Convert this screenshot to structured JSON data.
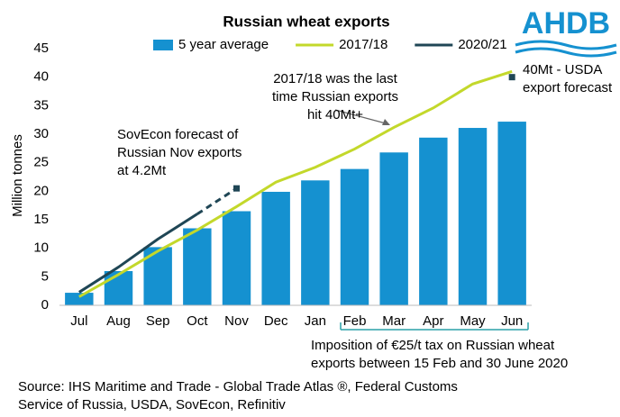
{
  "chart_data": {
    "type": "bar_line",
    "title": "Russian wheat exports",
    "y_label": "Million tonnes",
    "logo": "AHDB",
    "categories": [
      "Jul",
      "Aug",
      "Sep",
      "Oct",
      "Nov",
      "Dec",
      "Jan",
      "Feb",
      "Mar",
      "Apr",
      "May",
      "Jun"
    ],
    "ylim": [
      0,
      45
    ],
    "yticks": [
      0,
      5,
      10,
      15,
      20,
      25,
      30,
      35,
      40,
      45
    ],
    "legend": "top",
    "series": [
      {
        "name": "5 year average",
        "type": "bar",
        "color": "#1591d0",
        "values": [
          2.2,
          6.0,
          10.2,
          13.5,
          16.5,
          19.9,
          21.9,
          23.9,
          26.8,
          29.4,
          31.1,
          32.2
        ]
      },
      {
        "name": "2017/18",
        "type": "line",
        "color": "#c3d82b",
        "values": [
          1.5,
          5.4,
          9.5,
          13.2,
          17.3,
          21.6,
          24.2,
          27.4,
          31.2,
          34.6,
          38.8,
          41.0
        ]
      },
      {
        "name": "2020/21",
        "type": "line",
        "color": "#1f4655",
        "values": [
          2.3,
          6.7,
          11.6,
          16.0,
          null,
          null,
          null,
          null,
          null,
          null,
          null,
          null
        ]
      }
    ],
    "annotations": [
      {
        "text": [
          "SovEcon forecast of",
          "Russian Nov exports",
          "at 4.2Mt"
        ],
        "category": "Nov",
        "value": 20.5
      },
      {
        "text": [
          "40Mt - USDA",
          "export forecast"
        ],
        "category": "Jun",
        "value": 40
      },
      {
        "text": [
          "2017/18 was the last",
          "time Russian exports",
          "hit 40Mt+"
        ]
      },
      {
        "text": [
          "Imposition of €25/t tax on Russian wheat",
          "exports between 15 Feb and 30 June 2020"
        ]
      }
    ],
    "source": [
      "Source: IHS Maritime and Trade - Global Trade Atlas ®, Federal Customs",
      "Service of Russia, USDA, SovEcon, Refinitiv"
    ]
  }
}
